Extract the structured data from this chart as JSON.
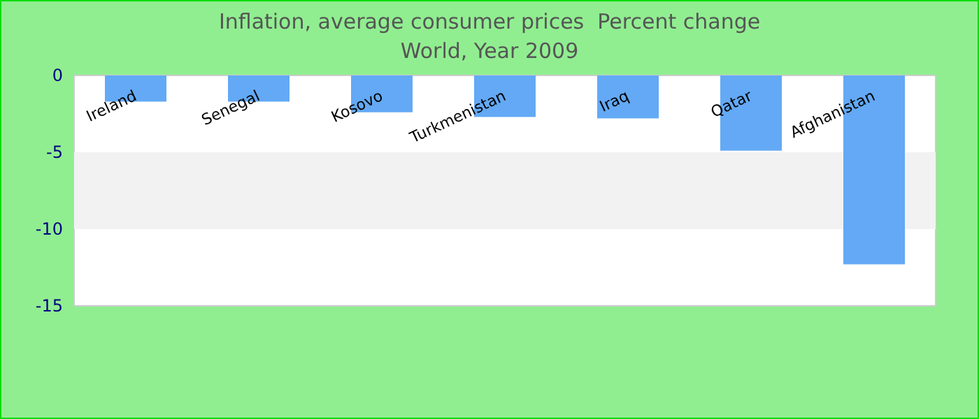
{
  "chart_data": {
    "type": "bar",
    "title": "Inflation, average consumer prices  Percent change",
    "subtitle": "World, Year 2009",
    "categories": [
      "Ireland",
      "Senegal",
      "Kosovo",
      "Turkmenistan",
      "Iraq",
      "Qatar",
      "Afghanistan"
    ],
    "values": [
      -1.7,
      -1.7,
      -2.4,
      -2.7,
      -2.8,
      -4.9,
      -12.3
    ],
    "color": "#63a9f5",
    "ylim": [
      -15,
      0
    ],
    "yticks": [
      -15,
      -10,
      -5,
      0
    ],
    "grid": false,
    "bands": [
      {
        "axis": "y",
        "from": -10,
        "to": -5,
        "color": "#f2f2f2"
      }
    ]
  }
}
